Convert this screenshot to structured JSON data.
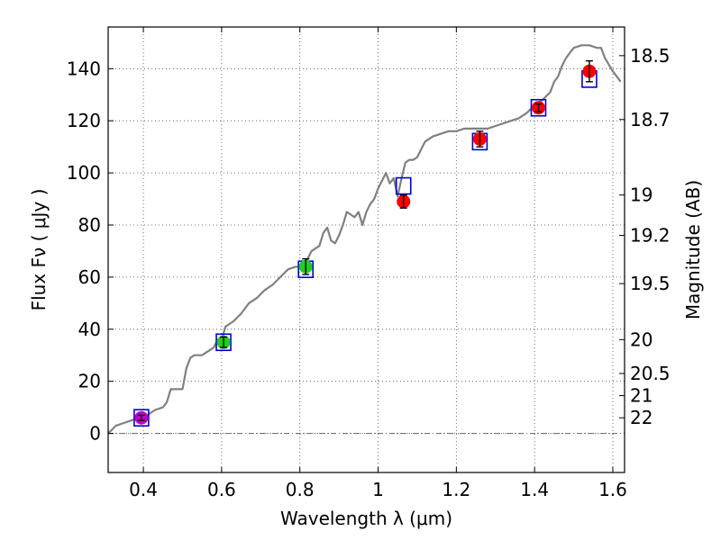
{
  "chart_data": {
    "type": "scatter",
    "xlabel": "Wavelength  λ (μm)",
    "ylabel": "Flux  Fν  ( μJy )",
    "y2label": "Magnitude (AB)",
    "xlim": [
      0.31,
      1.63
    ],
    "ylim": [
      -15,
      156
    ],
    "grid": true,
    "x_ticks": [
      0.4,
      0.6,
      0.8,
      1.0,
      1.2,
      1.4,
      1.6
    ],
    "x_tick_labels": [
      "0.4",
      "0.6",
      "0.8",
      "1",
      "1.2",
      "1.4",
      "1.6"
    ],
    "y_ticks": [
      0,
      20,
      40,
      60,
      80,
      100,
      120,
      140
    ],
    "y_tick_labels": [
      "0",
      "20",
      "40",
      "60",
      "80",
      "100",
      "120",
      "140"
    ],
    "mag_ticks": [
      {
        "label": "18.5",
        "flux": 145
      },
      {
        "label": "18.7",
        "flux": 120.5
      },
      {
        "label": "19",
        "flux": 91.5
      },
      {
        "label": "19.2",
        "flux": 76
      },
      {
        "label": "19.5",
        "flux": 57.5
      },
      {
        "label": "20",
        "flux": 36
      },
      {
        "label": "20.5",
        "flux": 23
      },
      {
        "label": "21",
        "flux": 14.5
      },
      {
        "label": "22",
        "flux": 6
      }
    ],
    "model_spectrum": {
      "color": "#808080",
      "x": [
        0.31,
        0.33,
        0.35,
        0.37,
        0.39,
        0.41,
        0.43,
        0.45,
        0.46,
        0.47,
        0.48,
        0.5,
        0.51,
        0.52,
        0.53,
        0.54,
        0.55,
        0.56,
        0.57,
        0.58,
        0.59,
        0.6,
        0.61,
        0.62,
        0.63,
        0.65,
        0.67,
        0.69,
        0.71,
        0.73,
        0.75,
        0.77,
        0.79,
        0.81,
        0.83,
        0.85,
        0.86,
        0.87,
        0.88,
        0.89,
        0.9,
        0.91,
        0.92,
        0.93,
        0.94,
        0.95,
        0.96,
        0.97,
        0.98,
        0.99,
        1.0,
        1.01,
        1.02,
        1.03,
        1.04,
        1.05,
        1.06,
        1.07,
        1.08,
        1.09,
        1.1,
        1.12,
        1.14,
        1.16,
        1.18,
        1.2,
        1.22,
        1.24,
        1.26,
        1.28,
        1.3,
        1.32,
        1.34,
        1.36,
        1.38,
        1.4,
        1.42,
        1.44,
        1.45,
        1.46,
        1.47,
        1.48,
        1.49,
        1.5,
        1.52,
        1.54,
        1.56,
        1.57,
        1.58,
        1.6,
        1.62
      ],
      "y": [
        0,
        3,
        4,
        5,
        6,
        7,
        9,
        10,
        12,
        17,
        17,
        17,
        25,
        29,
        30,
        30,
        30,
        31,
        32,
        33,
        36,
        36,
        41,
        42,
        43,
        46,
        50,
        52,
        55,
        57,
        60,
        63,
        64,
        64,
        70,
        72,
        77,
        79,
        74,
        73,
        76,
        80,
        85,
        84,
        83,
        85,
        80,
        85,
        88,
        90,
        94,
        97,
        100,
        96,
        98,
        91,
        98,
        104,
        105,
        105,
        106,
        112,
        114,
        115,
        116,
        116,
        117,
        117,
        117,
        117,
        118,
        119,
        120,
        121,
        123,
        126,
        128,
        131,
        135,
        137,
        141,
        144,
        146,
        148,
        149,
        149,
        148,
        148,
        144,
        139,
        135
      ]
    },
    "observed": [
      {
        "x": 0.395,
        "y": 6,
        "err": 1,
        "color": "#c000c0"
      },
      {
        "x": 0.605,
        "y": 35,
        "err": 2,
        "color": "#22cc22"
      },
      {
        "x": 0.815,
        "y": 64,
        "err": 3,
        "color": "#22cc22"
      },
      {
        "x": 1.065,
        "y": 89,
        "err": 2.5,
        "color": "#ff0000"
      },
      {
        "x": 1.26,
        "y": 113,
        "err": 3,
        "color": "#ff0000"
      },
      {
        "x": 1.41,
        "y": 125,
        "err": 1.5,
        "color": "#ff0000"
      },
      {
        "x": 1.54,
        "y": 139,
        "err": 4,
        "color": "#ff0000"
      }
    ],
    "model_fluxes": [
      {
        "x": 0.395,
        "y": 6
      },
      {
        "x": 0.605,
        "y": 35
      },
      {
        "x": 0.815,
        "y": 63
      },
      {
        "x": 1.065,
        "y": 95
      },
      {
        "x": 1.26,
        "y": 112
      },
      {
        "x": 1.41,
        "y": 125
      },
      {
        "x": 1.54,
        "y": 136
      }
    ],
    "zero_line": 0
  }
}
